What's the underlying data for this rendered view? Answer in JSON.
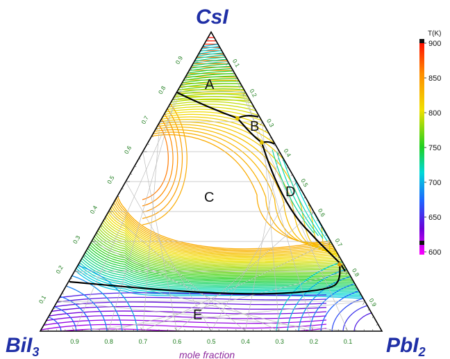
{
  "vertices": {
    "top": {
      "base": "CsI",
      "sub": ""
    },
    "left": {
      "base": "BiI",
      "sub": "3"
    },
    "right": {
      "base": "PbI",
      "sub": "2"
    }
  },
  "axis_label": "mole fraction",
  "left_ticks": [
    "0.1",
    "0.2",
    "0.3",
    "0.4",
    "0.5",
    "0.6",
    "0.7",
    "0.8",
    "0.9"
  ],
  "right_ticks": [
    "0.1",
    "0.2",
    "0.3",
    "0.4",
    "0.5",
    "0.6",
    "0.7",
    "0.8",
    "0.9"
  ],
  "bottom_ticks": [
    "0.9",
    "0.8",
    "0.7",
    "0.6",
    "0.5",
    "0.4",
    "0.3",
    "0.2",
    "0.1"
  ],
  "regions": [
    "A",
    "B",
    "C",
    "D",
    "E"
  ],
  "colorbar": {
    "title": "T(K)",
    "min": 600,
    "max": 900,
    "ticks": [
      "900",
      "850",
      "800",
      "750",
      "700",
      "650",
      "600"
    ]
  },
  "colors": {
    "vertex_label": "#1f2fa6",
    "tick_label": "#1e7d1e",
    "axis_label": "#8e2a9e",
    "boundary": "#000000"
  }
}
